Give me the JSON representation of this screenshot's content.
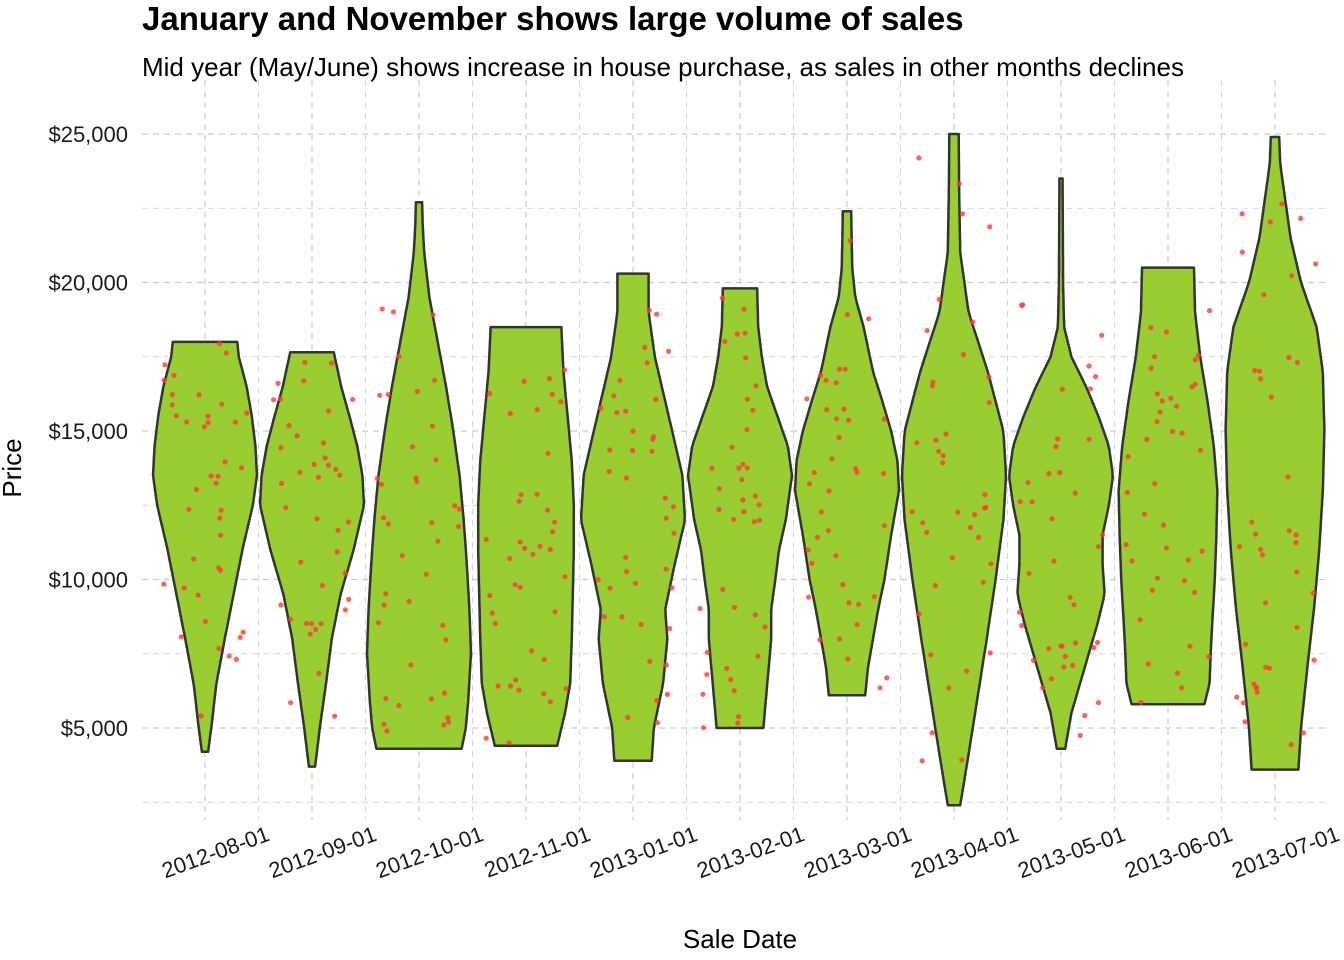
{
  "chart_data": {
    "type": "violin",
    "title": "January and November shows large volume of sales",
    "subtitle": "Mid year (May/June) shows increase in house purchase, as sales in other months declines",
    "xlabel": "Sale Date",
    "ylabel": "Price",
    "y_ticks": [
      5000,
      10000,
      15000,
      20000,
      25000
    ],
    "y_tick_labels": [
      "$5,000",
      "$10,000",
      "$15,000",
      "$20,000",
      "$25,000"
    ],
    "ylim": [
      2200,
      25800
    ],
    "grid": true,
    "colors": {
      "violin_fill": "#9acd32",
      "violin_stroke": "#333333",
      "points": "#ff3b30",
      "grid": "#cccccc"
    },
    "categories": [
      "2012-08-01",
      "2012-09-01",
      "2012-10-01",
      "2012-11-01",
      "2013-01-01",
      "2013-02-01",
      "2013-03-01",
      "2013-04-01",
      "2013-05-01",
      "2013-06-01",
      "2013-07-01"
    ],
    "violins": [
      {
        "x": "2012-08-01",
        "min": 4200,
        "max": 18000,
        "profile": [
          [
            4200,
            0.06
          ],
          [
            5000,
            0.12
          ],
          [
            6500,
            0.22
          ],
          [
            8000,
            0.38
          ],
          [
            9500,
            0.55
          ],
          [
            11000,
            0.72
          ],
          [
            12500,
            0.92
          ],
          [
            13500,
            1.0
          ],
          [
            14500,
            0.97
          ],
          [
            15500,
            0.9
          ],
          [
            16500,
            0.8
          ],
          [
            17500,
            0.65
          ],
          [
            18000,
            0.62
          ]
        ]
      },
      {
        "x": "2012-09-01",
        "min": 3700,
        "max": 17650,
        "profile": [
          [
            3700,
            0.06
          ],
          [
            5000,
            0.15
          ],
          [
            6500,
            0.27
          ],
          [
            8000,
            0.38
          ],
          [
            9500,
            0.55
          ],
          [
            11000,
            0.8
          ],
          [
            12500,
            1.0
          ],
          [
            13500,
            0.97
          ],
          [
            14500,
            0.87
          ],
          [
            15500,
            0.72
          ],
          [
            16500,
            0.56
          ],
          [
            17650,
            0.42
          ]
        ]
      },
      {
        "x": "2012-10-01",
        "min": 4300,
        "max": 22700,
        "profile": [
          [
            4300,
            0.82
          ],
          [
            5000,
            0.9
          ],
          [
            6000,
            0.95
          ],
          [
            7500,
            1.0
          ],
          [
            9000,
            0.97
          ],
          [
            10500,
            0.92
          ],
          [
            12000,
            0.86
          ],
          [
            13500,
            0.78
          ],
          [
            15000,
            0.66
          ],
          [
            16500,
            0.52
          ],
          [
            18000,
            0.36
          ],
          [
            19500,
            0.2
          ],
          [
            21000,
            0.1
          ],
          [
            22000,
            0.07
          ],
          [
            22700,
            0.06
          ]
        ]
      },
      {
        "x": "2012-11-01",
        "min": 4400,
        "max": 18500,
        "profile": [
          [
            4400,
            0.6
          ],
          [
            5500,
            0.75
          ],
          [
            6500,
            0.85
          ],
          [
            8000,
            0.88
          ],
          [
            9500,
            0.9
          ],
          [
            11000,
            0.92
          ],
          [
            12500,
            0.92
          ],
          [
            14000,
            0.88
          ],
          [
            15500,
            0.8
          ],
          [
            17000,
            0.72
          ],
          [
            18500,
            0.68
          ]
        ]
      },
      {
        "x": "2013-01-01",
        "min": 3900,
        "max": 20300,
        "profile": [
          [
            3900,
            0.36
          ],
          [
            5000,
            0.4
          ],
          [
            6500,
            0.58
          ],
          [
            8000,
            0.66
          ],
          [
            9000,
            0.62
          ],
          [
            10500,
            0.8
          ],
          [
            12000,
            1.0
          ],
          [
            13500,
            0.95
          ],
          [
            14500,
            0.82
          ],
          [
            16000,
            0.62
          ],
          [
            17500,
            0.42
          ],
          [
            19000,
            0.3
          ],
          [
            20300,
            0.3
          ]
        ]
      },
      {
        "x": "2013-02-01",
        "min": 5000,
        "max": 19800,
        "profile": [
          [
            5000,
            0.45
          ],
          [
            6000,
            0.5
          ],
          [
            7000,
            0.55
          ],
          [
            8000,
            0.6
          ],
          [
            9000,
            0.6
          ],
          [
            10000,
            0.68
          ],
          [
            11000,
            0.75
          ],
          [
            12000,
            0.88
          ],
          [
            13500,
            1.0
          ],
          [
            14500,
            0.92
          ],
          [
            15500,
            0.72
          ],
          [
            16500,
            0.52
          ],
          [
            17500,
            0.42
          ],
          [
            18500,
            0.35
          ],
          [
            19800,
            0.33
          ]
        ]
      },
      {
        "x": "2013-03-01",
        "min": 6100,
        "max": 22400,
        "profile": [
          [
            6100,
            0.35
          ],
          [
            7000,
            0.4
          ],
          [
            8000,
            0.5
          ],
          [
            9000,
            0.6
          ],
          [
            10000,
            0.72
          ],
          [
            11500,
            0.85
          ],
          [
            13000,
            1.0
          ],
          [
            14000,
            0.97
          ],
          [
            15000,
            0.85
          ],
          [
            16000,
            0.68
          ],
          [
            17000,
            0.5
          ],
          [
            18500,
            0.32
          ],
          [
            19500,
            0.16
          ],
          [
            20500,
            0.1
          ],
          [
            21500,
            0.09
          ],
          [
            22400,
            0.08
          ]
        ]
      },
      {
        "x": "2013-04-01",
        "min": 2400,
        "max": 25000,
        "profile": [
          [
            2400,
            0.12
          ],
          [
            4000,
            0.27
          ],
          [
            6000,
            0.45
          ],
          [
            8000,
            0.63
          ],
          [
            10000,
            0.8
          ],
          [
            12000,
            0.95
          ],
          [
            13500,
            1.0
          ],
          [
            15000,
            0.95
          ],
          [
            17000,
            0.65
          ],
          [
            19000,
            0.28
          ],
          [
            21000,
            0.12
          ],
          [
            23000,
            0.1
          ],
          [
            25000,
            0.09
          ]
        ]
      },
      {
        "x": "2013-05-01",
        "min": 4300,
        "max": 23500,
        "profile": [
          [
            4300,
            0.08
          ],
          [
            5500,
            0.2
          ],
          [
            7000,
            0.45
          ],
          [
            8500,
            0.7
          ],
          [
            9500,
            0.84
          ],
          [
            10500,
            0.8
          ],
          [
            11500,
            0.8
          ],
          [
            12500,
            0.92
          ],
          [
            13500,
            1.0
          ],
          [
            14500,
            0.92
          ],
          [
            15500,
            0.72
          ],
          [
            16500,
            0.48
          ],
          [
            17500,
            0.2
          ],
          [
            18500,
            0.06
          ],
          [
            20000,
            0.04
          ],
          [
            22000,
            0.035
          ],
          [
            23500,
            0.03
          ]
        ]
      },
      {
        "x": "2013-06-01",
        "min": 5800,
        "max": 20500,
        "profile": [
          [
            5800,
            0.7
          ],
          [
            6500,
            0.8
          ],
          [
            7500,
            0.82
          ],
          [
            8500,
            0.85
          ],
          [
            10000,
            0.9
          ],
          [
            11500,
            0.93
          ],
          [
            13000,
            0.95
          ],
          [
            14500,
            0.88
          ],
          [
            16000,
            0.76
          ],
          [
            17500,
            0.62
          ],
          [
            19000,
            0.52
          ],
          [
            20500,
            0.5
          ]
        ]
      },
      {
        "x": "2013-07-01",
        "min": 3600,
        "max": 24900,
        "profile": [
          [
            3600,
            0.45
          ],
          [
            5000,
            0.5
          ],
          [
            7000,
            0.62
          ],
          [
            9000,
            0.75
          ],
          [
            11000,
            0.85
          ],
          [
            13000,
            0.92
          ],
          [
            15000,
            0.95
          ],
          [
            17000,
            0.92
          ],
          [
            18500,
            0.8
          ],
          [
            20000,
            0.5
          ],
          [
            21500,
            0.3
          ],
          [
            23000,
            0.18
          ],
          [
            24000,
            0.1
          ],
          [
            24900,
            0.08
          ]
        ]
      }
    ]
  }
}
